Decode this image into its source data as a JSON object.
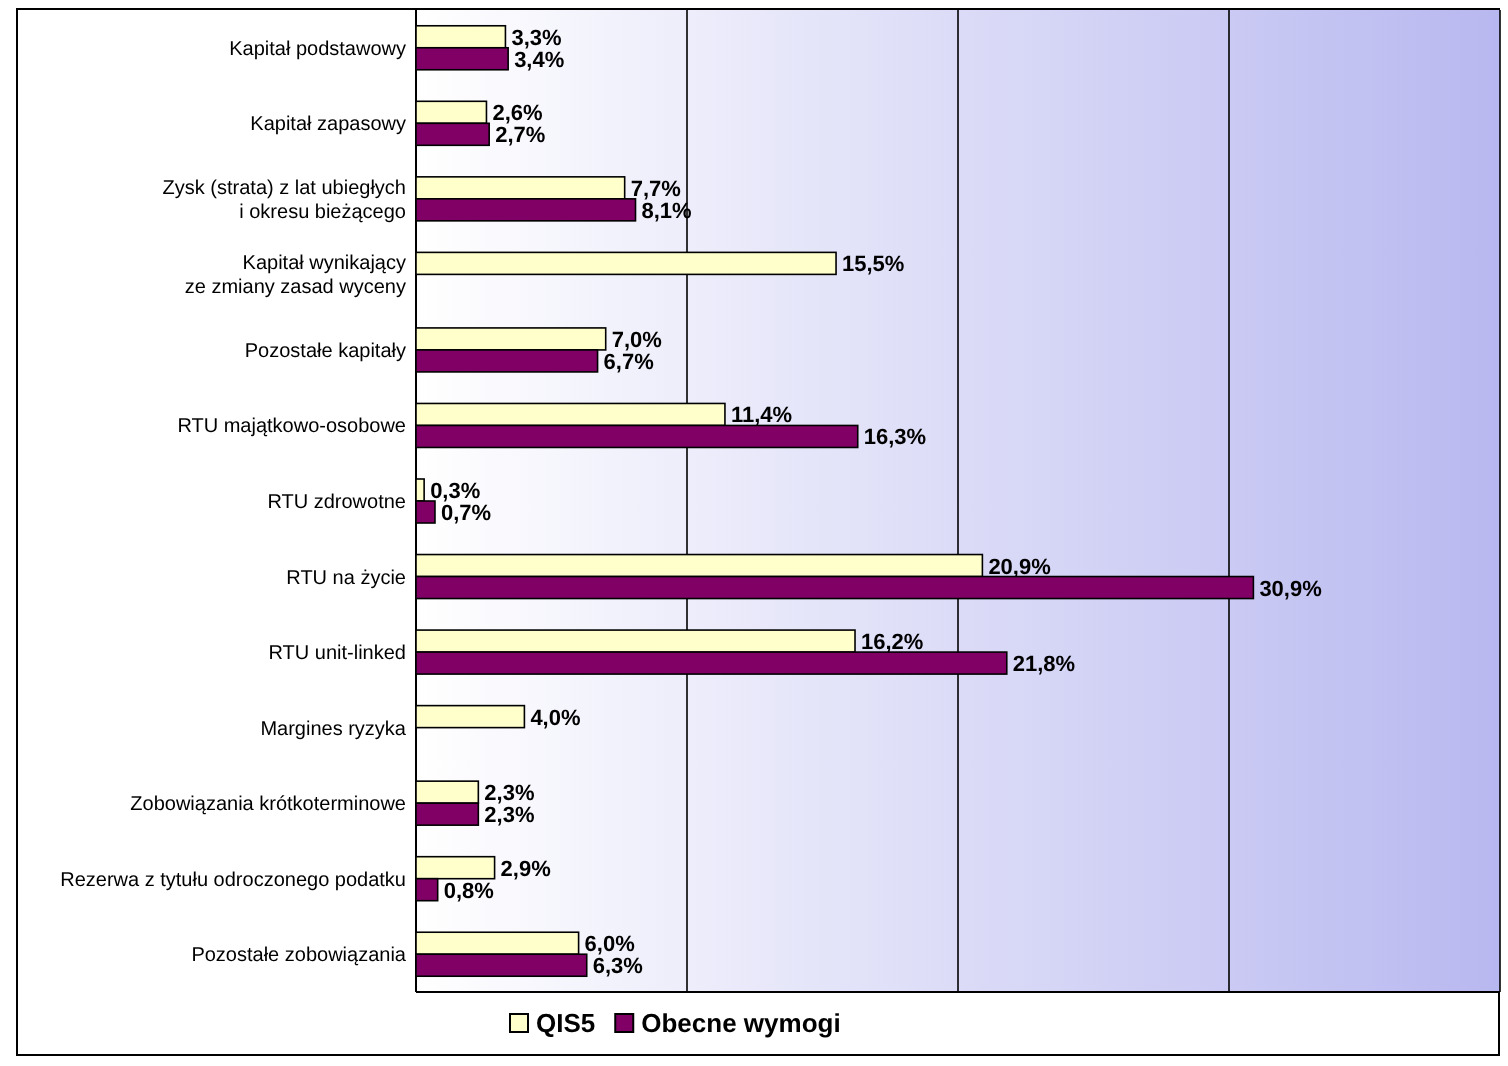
{
  "chart_data": {
    "type": "bar",
    "orientation": "horizontal",
    "categories": [
      "Kapitał podstawowy",
      "Kapitał zapasowy",
      "Zysk (strata) z lat ubiegłych\ni okresu bieżącego",
      "Kapitał wynikający\nze zmiany zasad wyceny",
      "Pozostałe kapitały",
      "RTU majątkowo-osobowe",
      "RTU zdrowotne",
      "RTU na życie",
      "RTU unit-linked",
      "Margines ryzyka",
      "Zobowiązania krótkoterminowe",
      "Rezerwa z tytułu odroczonego podatku",
      "Pozostałe zobowiązania"
    ],
    "series": [
      {
        "name": "QIS5",
        "color": "#ffffcc",
        "values": [
          3.3,
          2.6,
          7.7,
          15.5,
          7.0,
          11.4,
          0.3,
          20.9,
          16.2,
          4.0,
          2.3,
          2.9,
          6.0
        ],
        "value_labels": [
          "3,3%",
          "2,6%",
          "7,7%",
          "15,5%",
          "7,0%",
          "11,4%",
          "0,3%",
          "20,9%",
          "16,2%",
          "4,0%",
          "2,3%",
          "2,9%",
          "6,0%"
        ]
      },
      {
        "name": "Obecne wymogi",
        "color": "#800066",
        "values": [
          3.4,
          2.7,
          8.1,
          null,
          6.7,
          16.3,
          0.7,
          30.9,
          21.8,
          null,
          2.3,
          0.8,
          6.3
        ],
        "value_labels": [
          "3,4%",
          "2,7%",
          "8,1%",
          null,
          "6,7%",
          "16,3%",
          "0,7%",
          "30,9%",
          "21,8%",
          null,
          "2,3%",
          "0,8%",
          "6,3%"
        ]
      }
    ],
    "xlim": [
      0,
      40
    ],
    "xticks": [
      {
        "value": 0,
        "label": null
      },
      {
        "value": 10,
        "label": null
      },
      {
        "value": 20,
        "label": null
      },
      {
        "value": 30,
        "label": null
      },
      {
        "value": 40,
        "label": null
      }
    ],
    "grid": "x",
    "legend": "bottom"
  }
}
